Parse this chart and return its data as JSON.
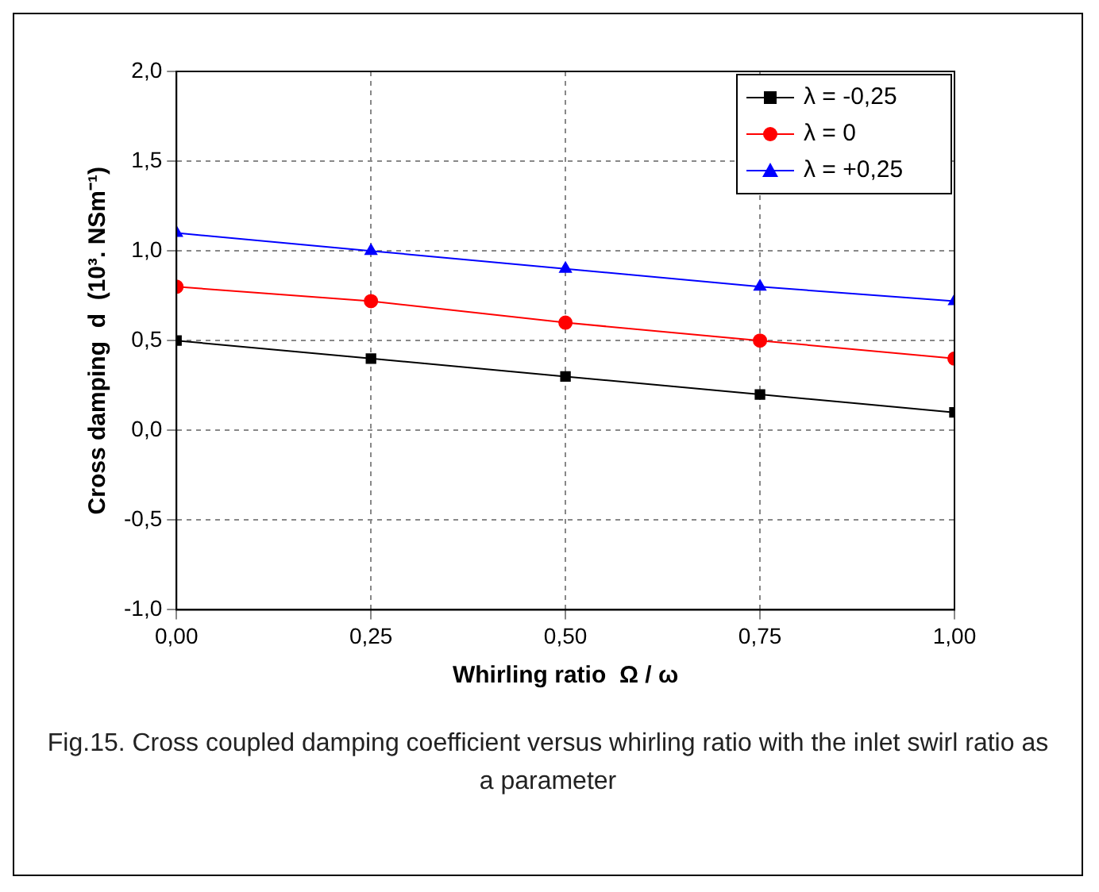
{
  "chart_data": {
    "type": "line",
    "xlabel": "Whirling ratio  Ω / ω",
    "ylabel": "Cross damping  d  (10³. NSm⁻¹)",
    "x": [
      0,
      0.25,
      0.5,
      0.75,
      1
    ],
    "series": [
      {
        "name": "λ = -0,25",
        "color": "#000000",
        "marker": "square",
        "values": [
          0.5,
          0.4,
          0.3,
          0.2,
          0.1
        ]
      },
      {
        "name": "λ = 0",
        "color": "#ff0000",
        "marker": "circle",
        "values": [
          0.8,
          0.72,
          0.6,
          0.5,
          0.4
        ]
      },
      {
        "name": "λ = +0,25",
        "color": "#0000ff",
        "marker": "triangle",
        "values": [
          1.1,
          1.0,
          0.9,
          0.8,
          0.72
        ]
      }
    ],
    "xlim": [
      0,
      1
    ],
    "xticks": [
      {
        "value": 0,
        "label": "0,00"
      },
      {
        "value": 0.25,
        "label": "0,25"
      },
      {
        "value": 0.5,
        "label": "0,50"
      },
      {
        "value": 0.75,
        "label": "0,75"
      },
      {
        "value": 1,
        "label": "1,00"
      }
    ],
    "ylim": [
      -1,
      2
    ],
    "yticks": [
      {
        "value": -1,
        "label": "-1,0"
      },
      {
        "value": -0.5,
        "label": "-0,5"
      },
      {
        "value": 0,
        "label": "0,0"
      },
      {
        "value": 0.5,
        "label": "0,5"
      },
      {
        "value": 1,
        "label": "1,0"
      },
      {
        "value": 1.5,
        "label": "1,5"
      },
      {
        "value": 2,
        "label": "2,0"
      }
    ],
    "grid": true,
    "legend": "top right",
    "line_style": "solid",
    "annotations": [
      "Fig.15. Cross coupled damping coefficient versus whirling ratio with the inlet swirl ratio as a parameter"
    ]
  }
}
